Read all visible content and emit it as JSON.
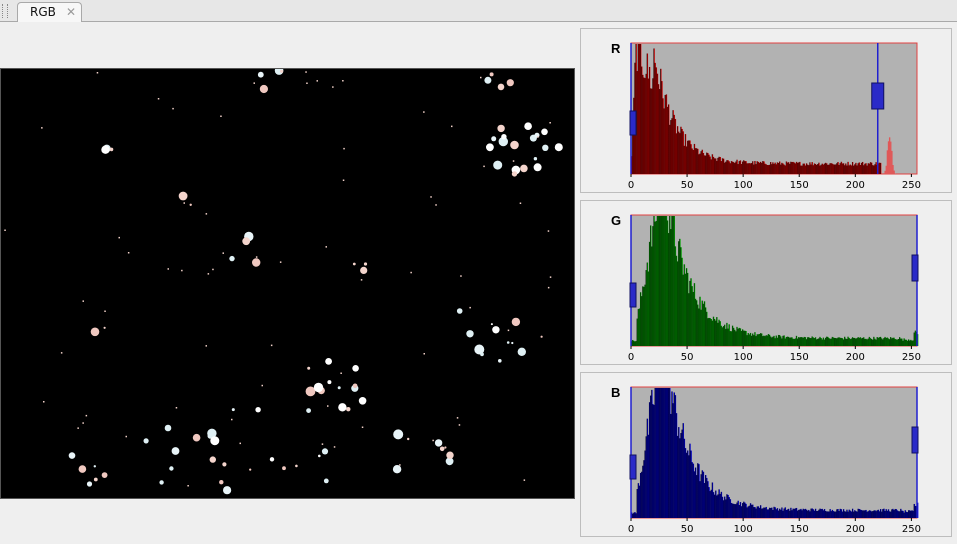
{
  "tabs": [
    {
      "label": "RGB",
      "close_glyph": "✕"
    }
  ],
  "histograms": [
    {
      "channel": "R",
      "color": "#ff0000",
      "tick_labels": [
        "0",
        "50",
        "100",
        "150",
        "200",
        "250"
      ],
      "low_handle": 0,
      "high_handle": 220
    },
    {
      "channel": "G",
      "color": "#00cc00",
      "tick_labels": [
        "0",
        "50",
        "100",
        "150",
        "200",
        "250"
      ],
      "low_handle": 0,
      "high_handle": 255
    },
    {
      "channel": "B",
      "color": "#0000ff",
      "tick_labels": [
        "0",
        "50",
        "100",
        "150",
        "200",
        "250"
      ],
      "low_handle": 0,
      "high_handle": 255
    }
  ],
  "colors": {
    "plot_background": "#b2b2b2",
    "plot_border": "#e04040",
    "handle_fill": "#2a2ac8",
    "guide_line": "#2020d0"
  }
}
